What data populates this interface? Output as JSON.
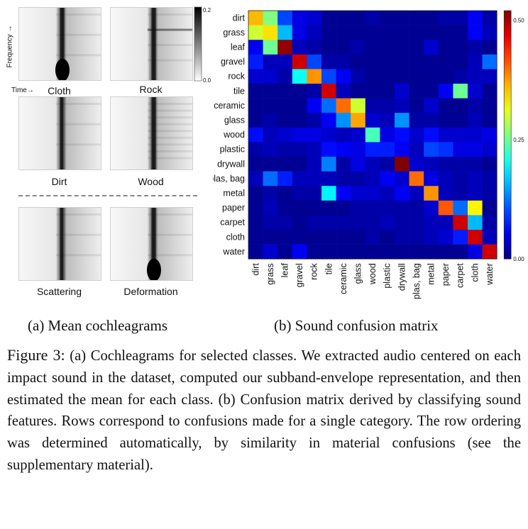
{
  "figure": {
    "left_panels": [
      {
        "label": "Cloth",
        "style": "bulb"
      },
      {
        "label": "Rock",
        "style": "rock"
      },
      {
        "label": "Dirt",
        "style": "thin"
      },
      {
        "label": "Wood",
        "style": "banded"
      },
      {
        "label": "Scattering",
        "style": "thin"
      },
      {
        "label": "Deformation",
        "style": "bulb"
      }
    ],
    "left_axes": {
      "y_label": "Frequency",
      "x_label": "Time"
    },
    "left_colorbar": {
      "ticks": [
        "0.2",
        "0.0"
      ]
    },
    "subcaption_a": "(a) Mean cochleagrams",
    "subcaption_b": "(b) Sound confusion matrix",
    "caption_label": "Figure 3:",
    "caption_text": "(a) Cochleagrams for selected classes. We extracted audio centered on each impact sound in the dataset, computed our subband-envelope representation, and then estimated the mean for each class. (b) Confusion matrix derived by classifying sound features. Rows correspond to confusions made for a single category. The row ordering was determined automatically, by similarity in material confusions (see the supplementary material).",
    "colors": {
      "text": "#111111",
      "panel_border": "#cfcfcf"
    }
  },
  "chart_data": {
    "type": "heatmap",
    "title": "",
    "xlabel": "",
    "ylabel": "",
    "categories": [
      "dirt",
      "grass",
      "leaf",
      "gravel",
      "rock",
      "tile",
      "ceramic",
      "glass",
      "wood",
      "plastic",
      "drywall",
      "plas, bag",
      "metal",
      "paper",
      "carpet",
      "cloth",
      "water"
    ],
    "colorbar": {
      "min": 0.0,
      "max": 0.52,
      "ticks": [
        "0.50",
        "0.25",
        "0.00"
      ]
    },
    "values": [
      [
        0.36,
        0.26,
        0.1,
        0.05,
        0.04,
        0.01,
        0.01,
        0.01,
        0.02,
        0.01,
        0.01,
        0.01,
        0.01,
        0.02,
        0.02,
        0.06,
        0.02
      ],
      [
        0.3,
        0.34,
        0.16,
        0.05,
        0.03,
        0.01,
        0.01,
        0.01,
        0.01,
        0.01,
        0.01,
        0.01,
        0.01,
        0.01,
        0.01,
        0.06,
        0.03
      ],
      [
        0.06,
        0.25,
        0.51,
        0.03,
        0.02,
        0.01,
        0.01,
        0.02,
        0.01,
        0.01,
        0.01,
        0.01,
        0.04,
        0.01,
        0.01,
        0.02,
        0.01
      ],
      [
        0.08,
        0.03,
        0.03,
        0.48,
        0.1,
        0.02,
        0.02,
        0.01,
        0.01,
        0.01,
        0.01,
        0.01,
        0.01,
        0.01,
        0.01,
        0.03,
        0.12
      ],
      [
        0.04,
        0.04,
        0.02,
        0.2,
        0.38,
        0.1,
        0.06,
        0.02,
        0.01,
        0.01,
        0.01,
        0.01,
        0.01,
        0.01,
        0.02,
        0.03,
        0.03
      ],
      [
        0.01,
        0.01,
        0.01,
        0.01,
        0.02,
        0.48,
        0.03,
        0.01,
        0.01,
        0.01,
        0.04,
        0.01,
        0.01,
        0.06,
        0.25,
        0.04,
        0.01
      ],
      [
        0.01,
        0.01,
        0.01,
        0.01,
        0.06,
        0.12,
        0.4,
        0.3,
        0.02,
        0.02,
        0.03,
        0.01,
        0.04,
        0.01,
        0.01,
        0.02,
        0.01
      ],
      [
        0.01,
        0.02,
        0.01,
        0.01,
        0.02,
        0.06,
        0.14,
        0.37,
        0.04,
        0.03,
        0.14,
        0.02,
        0.02,
        0.01,
        0.01,
        0.03,
        0.01
      ],
      [
        0.07,
        0.03,
        0.04,
        0.05,
        0.05,
        0.04,
        0.03,
        0.04,
        0.23,
        0.05,
        0.07,
        0.04,
        0.07,
        0.04,
        0.04,
        0.04,
        0.05
      ],
      [
        0.02,
        0.03,
        0.02,
        0.02,
        0.03,
        0.07,
        0.06,
        0.05,
        0.08,
        0.08,
        0.06,
        0.03,
        0.1,
        0.09,
        0.05,
        0.05,
        0.04
      ],
      [
        0.01,
        0.01,
        0.01,
        0.01,
        0.03,
        0.13,
        0.02,
        0.05,
        0.03,
        0.02,
        0.52,
        0.04,
        0.03,
        0.02,
        0.02,
        0.02,
        0.01
      ],
      [
        0.03,
        0.12,
        0.08,
        0.03,
        0.03,
        0.03,
        0.02,
        0.02,
        0.03,
        0.06,
        0.04,
        0.4,
        0.05,
        0.03,
        0.02,
        0.03,
        0.02
      ],
      [
        0.01,
        0.02,
        0.01,
        0.02,
        0.02,
        0.19,
        0.06,
        0.04,
        0.04,
        0.03,
        0.06,
        0.03,
        0.38,
        0.03,
        0.02,
        0.03,
        0.02
      ],
      [
        0.01,
        0.03,
        0.01,
        0.01,
        0.01,
        0.01,
        0.01,
        0.02,
        0.02,
        0.02,
        0.02,
        0.02,
        0.04,
        0.41,
        0.12,
        0.33,
        0.01
      ],
      [
        0.01,
        0.02,
        0.02,
        0.01,
        0.02,
        0.02,
        0.02,
        0.02,
        0.02,
        0.03,
        0.02,
        0.02,
        0.03,
        0.03,
        0.48,
        0.16,
        0.02
      ],
      [
        0.01,
        0.01,
        0.01,
        0.01,
        0.01,
        0.01,
        0.01,
        0.01,
        0.02,
        0.01,
        0.02,
        0.02,
        0.03,
        0.04,
        0.08,
        0.48,
        0.03
      ],
      [
        0.01,
        0.04,
        0.01,
        0.06,
        0.01,
        0.01,
        0.01,
        0.01,
        0.01,
        0.01,
        0.01,
        0.01,
        0.01,
        0.01,
        0.01,
        0.05,
        0.48
      ]
    ]
  }
}
